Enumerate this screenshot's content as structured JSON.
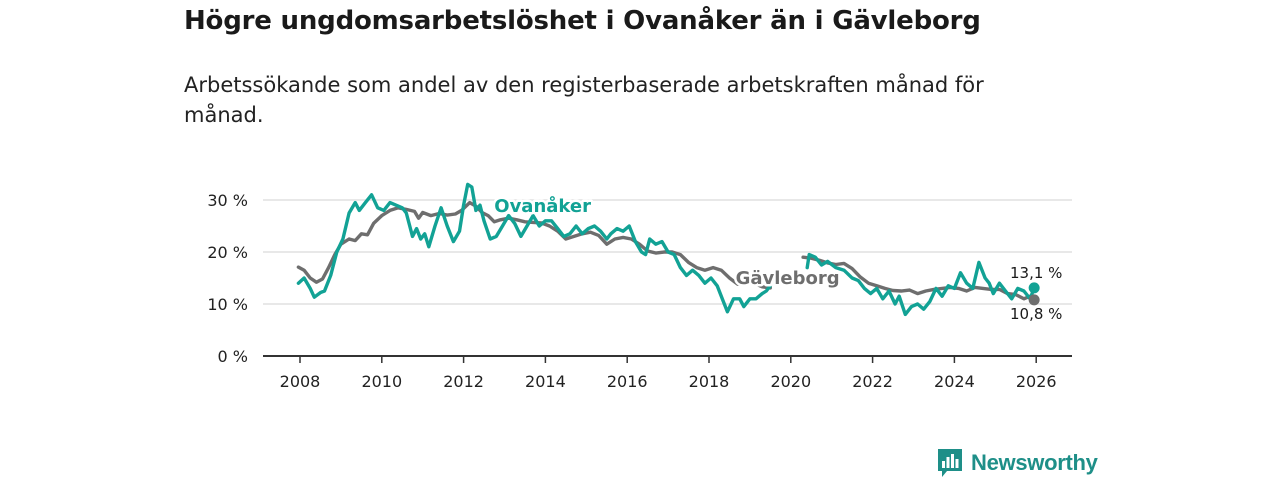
{
  "header": {
    "title": "Högre ungdomsarbetslöshet i Ovanåker än i Gävleborg",
    "subtitle": "Arbetssökande som andel av den registerbaserade arbetskraften månad för månad."
  },
  "colors": {
    "ovanaker": "#12a295",
    "gavleborg": "#6e6e6e",
    "grid": "#d9d9d9",
    "axis": "#333333"
  },
  "brand": {
    "name": "Newsworthy",
    "icon": "bar-chart-logo-icon"
  },
  "chart_data": {
    "type": "line",
    "title": "Högre ungdomsarbetslöshet i Ovanåker än i Gävleborg",
    "xlabel": "",
    "ylabel": "",
    "xlim": [
      2007.5,
      2026.9
    ],
    "ylim": [
      0,
      30
    ],
    "x_ticks": [
      2008,
      2010,
      2012,
      2014,
      2016,
      2018,
      2020,
      2022,
      2024,
      2026
    ],
    "x_tick_labels": [
      "2008",
      "2010",
      "2012",
      "2014",
      "2016",
      "2018",
      "2020",
      "2022",
      "2024",
      "2026"
    ],
    "y_ticks": [
      0,
      10,
      20,
      30
    ],
    "y_tick_labels": [
      "0 %",
      "10 %",
      "20 %",
      "30 %"
    ],
    "grid": true,
    "series": [
      {
        "name": "Gävleborg",
        "label": "Gävleborg",
        "color": "#6e6e6e",
        "end_label": "10,8 %",
        "points": [
          [
            2007.96,
            17.1
          ],
          [
            2008.1,
            16.5
          ],
          [
            2008.25,
            15
          ],
          [
            2008.4,
            14.2
          ],
          [
            2008.55,
            14.8
          ],
          [
            2008.7,
            17
          ],
          [
            2008.85,
            19.5
          ],
          [
            2009.0,
            21.5
          ],
          [
            2009.2,
            22.5
          ],
          [
            2009.35,
            22.2
          ],
          [
            2009.5,
            23.5
          ],
          [
            2009.65,
            23.3
          ],
          [
            2009.8,
            25.5
          ],
          [
            2010.0,
            27
          ],
          [
            2010.2,
            28
          ],
          [
            2010.4,
            28.5
          ],
          [
            2010.6,
            28.2
          ],
          [
            2010.8,
            27.8
          ],
          [
            2010.9,
            26.5
          ],
          [
            2011.0,
            27.6
          ],
          [
            2011.2,
            27
          ],
          [
            2011.4,
            27.4
          ],
          [
            2011.6,
            27.1
          ],
          [
            2011.8,
            27.3
          ],
          [
            2011.95,
            28
          ],
          [
            2012.15,
            29.5
          ],
          [
            2012.3,
            28.8
          ],
          [
            2012.45,
            27.6
          ],
          [
            2012.6,
            27
          ],
          [
            2012.75,
            25.8
          ],
          [
            2012.9,
            26.2
          ],
          [
            2013.1,
            26.5
          ],
          [
            2013.3,
            26.2
          ],
          [
            2013.5,
            25.8
          ],
          [
            2013.7,
            25.7
          ],
          [
            2013.9,
            25.6
          ],
          [
            2014.1,
            25
          ],
          [
            2014.3,
            24
          ],
          [
            2014.5,
            22.5
          ],
          [
            2014.7,
            23
          ],
          [
            2014.9,
            23.5
          ],
          [
            2015.1,
            23.8
          ],
          [
            2015.3,
            23.2
          ],
          [
            2015.5,
            21.5
          ],
          [
            2015.7,
            22.5
          ],
          [
            2015.9,
            22.8
          ],
          [
            2016.1,
            22.5
          ],
          [
            2016.3,
            21.5
          ],
          [
            2016.5,
            20.2
          ],
          [
            2016.7,
            19.8
          ],
          [
            2016.9,
            20
          ],
          [
            2017.1,
            20
          ],
          [
            2017.3,
            19.5
          ],
          [
            2017.5,
            18
          ],
          [
            2017.7,
            17
          ],
          [
            2017.9,
            16.5
          ],
          [
            2018.1,
            17
          ],
          [
            2018.3,
            16.5
          ],
          [
            2018.5,
            15
          ],
          [
            2018.7,
            13.8
          ],
          [
            2018.9,
            14
          ],
          [
            2019.1,
            14
          ],
          [
            2019.3,
            13.3
          ],
          [
            2019.5,
            13.1
          ]
        ]
      },
      {
        "name": "Gävleborg (2020–)",
        "label": "",
        "color": "#6e6e6e",
        "end_label": "",
        "points": [
          [
            2020.3,
            19
          ],
          [
            2020.5,
            18.8
          ],
          [
            2020.7,
            18.4
          ],
          [
            2020.9,
            17.9
          ],
          [
            2021.1,
            17.6
          ],
          [
            2021.3,
            17.8
          ],
          [
            2021.5,
            16.8
          ],
          [
            2021.7,
            15.2
          ],
          [
            2021.9,
            14
          ],
          [
            2022.1,
            13.5
          ],
          [
            2022.3,
            13
          ],
          [
            2022.5,
            12.6
          ],
          [
            2022.7,
            12.5
          ],
          [
            2022.9,
            12.7
          ],
          [
            2023.1,
            12
          ],
          [
            2023.3,
            12.5
          ],
          [
            2023.5,
            12.8
          ],
          [
            2023.7,
            13
          ],
          [
            2023.9,
            13.2
          ],
          [
            2024.1,
            13
          ],
          [
            2024.3,
            12.5
          ],
          [
            2024.5,
            13.2
          ],
          [
            2024.7,
            13
          ],
          [
            2024.9,
            12.8
          ],
          [
            2025.1,
            12.8
          ],
          [
            2025.3,
            12
          ],
          [
            2025.5,
            11.8
          ],
          [
            2025.7,
            11
          ],
          [
            2025.85,
            11.5
          ],
          [
            2025.95,
            10.8
          ]
        ]
      },
      {
        "name": "Ovanåker",
        "label": "Ovanåker",
        "color": "#12a295",
        "end_label": "13,1 %",
        "points": [
          [
            2007.96,
            14
          ],
          [
            2008.1,
            15
          ],
          [
            2008.25,
            13
          ],
          [
            2008.35,
            11.3
          ],
          [
            2008.5,
            12.2
          ],
          [
            2008.6,
            12.5
          ],
          [
            2008.75,
            15.5
          ],
          [
            2008.9,
            20
          ],
          [
            2009.05,
            22.5
          ],
          [
            2009.2,
            27.5
          ],
          [
            2009.35,
            29.5
          ],
          [
            2009.45,
            28
          ],
          [
            2009.6,
            29.5
          ],
          [
            2009.75,
            31
          ],
          [
            2009.9,
            28.5
          ],
          [
            2010.05,
            28
          ],
          [
            2010.2,
            29.5
          ],
          [
            2010.35,
            29
          ],
          [
            2010.5,
            28.5
          ],
          [
            2010.6,
            27.5
          ],
          [
            2010.75,
            23
          ],
          [
            2010.85,
            24.5
          ],
          [
            2010.95,
            22.5
          ],
          [
            2011.05,
            23.5
          ],
          [
            2011.15,
            21
          ],
          [
            2011.3,
            25
          ],
          [
            2011.45,
            28.5
          ],
          [
            2011.6,
            25
          ],
          [
            2011.75,
            22
          ],
          [
            2011.9,
            24
          ],
          [
            2012.0,
            29
          ],
          [
            2012.1,
            33
          ],
          [
            2012.2,
            32.5
          ],
          [
            2012.3,
            28
          ],
          [
            2012.4,
            29
          ],
          [
            2012.5,
            26
          ],
          [
            2012.65,
            22.5
          ],
          [
            2012.8,
            23
          ],
          [
            2012.95,
            25
          ],
          [
            2013.1,
            27
          ],
          [
            2013.25,
            25.5
          ],
          [
            2013.4,
            23
          ],
          [
            2013.55,
            25
          ],
          [
            2013.7,
            27
          ],
          [
            2013.85,
            25
          ],
          [
            2014.0,
            26
          ],
          [
            2014.15,
            26
          ],
          [
            2014.3,
            24.5
          ],
          [
            2014.45,
            23
          ],
          [
            2014.6,
            23.5
          ],
          [
            2014.75,
            25
          ],
          [
            2014.9,
            23.5
          ],
          [
            2015.05,
            24.5
          ],
          [
            2015.2,
            25
          ],
          [
            2015.35,
            24
          ],
          [
            2015.5,
            22.5
          ],
          [
            2015.6,
            23.5
          ],
          [
            2015.75,
            24.5
          ],
          [
            2015.9,
            24
          ],
          [
            2016.05,
            25
          ],
          [
            2016.2,
            22
          ],
          [
            2016.35,
            20
          ],
          [
            2016.45,
            19.5
          ],
          [
            2016.55,
            22.5
          ],
          [
            2016.7,
            21.5
          ],
          [
            2016.85,
            22
          ],
          [
            2017.0,
            20
          ],
          [
            2017.15,
            19.5
          ],
          [
            2017.3,
            17
          ],
          [
            2017.45,
            15.5
          ],
          [
            2017.6,
            16.5
          ],
          [
            2017.75,
            15.5
          ],
          [
            2017.9,
            14
          ],
          [
            2018.05,
            15
          ],
          [
            2018.2,
            13.5
          ],
          [
            2018.35,
            10.5
          ],
          [
            2018.45,
            8.5
          ],
          [
            2018.6,
            11
          ],
          [
            2018.75,
            11
          ],
          [
            2018.85,
            9.5
          ],
          [
            2019.0,
            11
          ],
          [
            2019.15,
            11
          ],
          [
            2019.3,
            12
          ],
          [
            2019.4,
            12.5
          ],
          [
            2019.5,
            13.5
          ]
        ]
      },
      {
        "name": "Ovanåker (2020–)",
        "label": "",
        "color": "#12a295",
        "end_label": "",
        "points": [
          [
            2020.4,
            17
          ],
          [
            2020.45,
            19.5
          ],
          [
            2020.6,
            19
          ],
          [
            2020.75,
            17.5
          ],
          [
            2020.9,
            18.2
          ],
          [
            2021.1,
            17
          ],
          [
            2021.3,
            16.5
          ],
          [
            2021.5,
            15
          ],
          [
            2021.65,
            14.5
          ],
          [
            2021.8,
            13
          ],
          [
            2021.95,
            12
          ],
          [
            2022.1,
            13
          ],
          [
            2022.25,
            11
          ],
          [
            2022.4,
            12.5
          ],
          [
            2022.55,
            10
          ],
          [
            2022.65,
            11.5
          ],
          [
            2022.8,
            8
          ],
          [
            2022.95,
            9.5
          ],
          [
            2023.1,
            10
          ],
          [
            2023.25,
            9
          ],
          [
            2023.4,
            10.5
          ],
          [
            2023.55,
            13
          ],
          [
            2023.7,
            11.5
          ],
          [
            2023.85,
            13.5
          ],
          [
            2024.0,
            13
          ],
          [
            2024.15,
            16
          ],
          [
            2024.3,
            14
          ],
          [
            2024.45,
            13
          ],
          [
            2024.6,
            18
          ],
          [
            2024.75,
            15
          ],
          [
            2024.85,
            14
          ],
          [
            2024.95,
            12
          ],
          [
            2025.1,
            14
          ],
          [
            2025.25,
            12.5
          ],
          [
            2025.4,
            11
          ],
          [
            2025.55,
            13
          ],
          [
            2025.7,
            12.5
          ],
          [
            2025.85,
            11
          ],
          [
            2025.95,
            13.1
          ]
        ]
      }
    ]
  }
}
